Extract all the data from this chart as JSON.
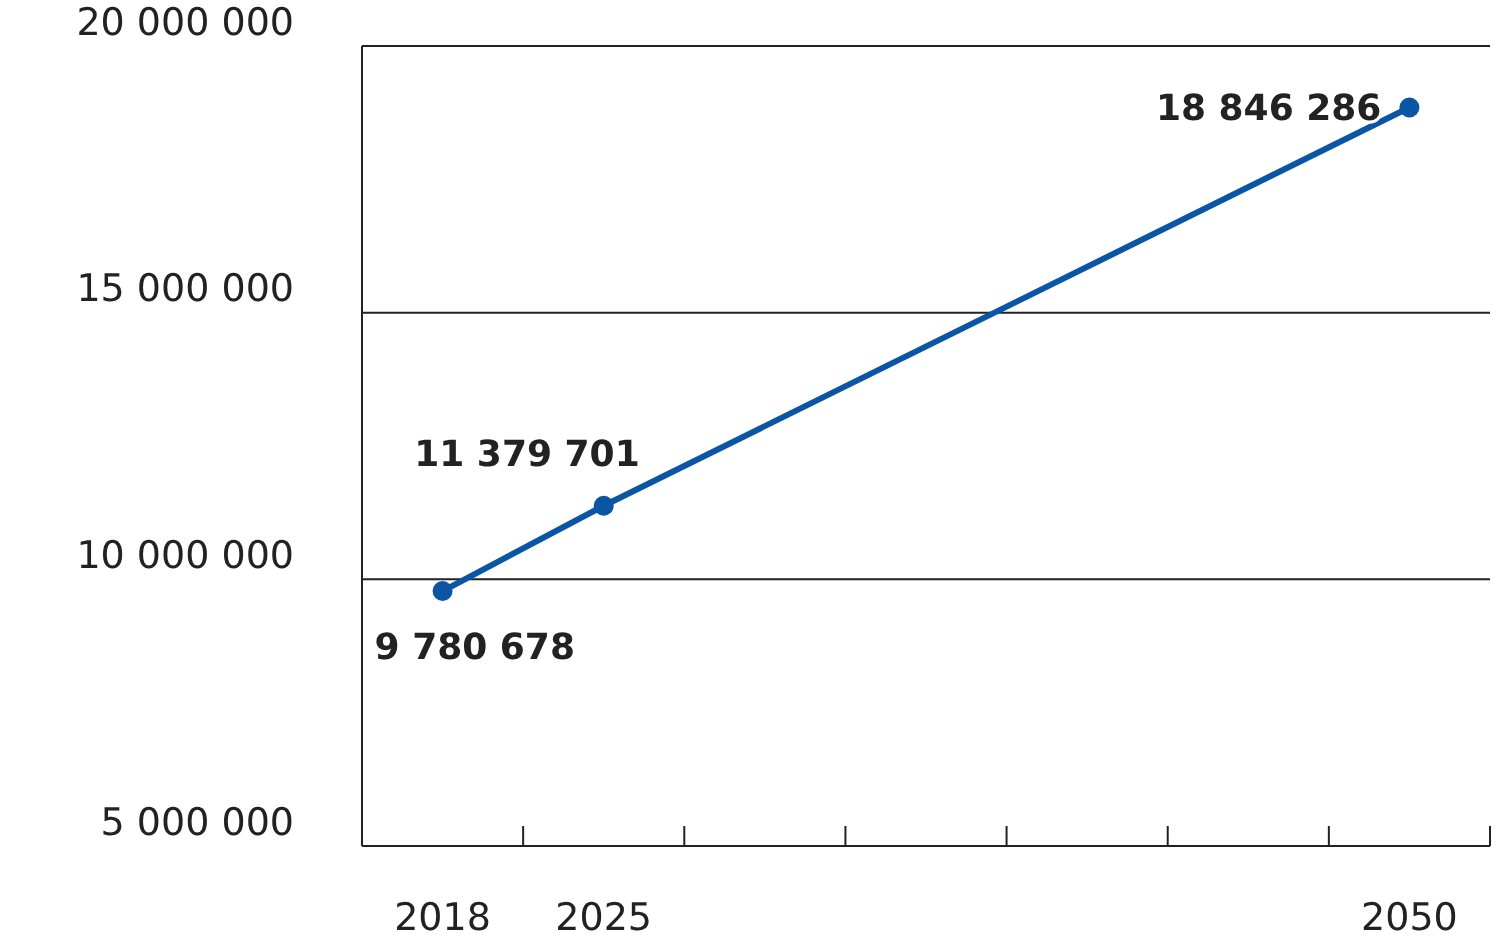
{
  "chart_data": {
    "type": "line",
    "categories": [
      "2018",
      "2025",
      null,
      null,
      null,
      null,
      "2050"
    ],
    "series": [
      {
        "color": "#0a56a5",
        "values": [
          9780678,
          11379701,
          null,
          null,
          null,
          null,
          18846286
        ],
        "value_labels": [
          "9 780 678",
          "11 379 701",
          null,
          null,
          null,
          null,
          "18 846 286"
        ]
      }
    ],
    "ylim": [
      5000000,
      20000000
    ],
    "yticks": [
      {
        "value": 5000000,
        "label": "5 000 000"
      },
      {
        "value": 10000000,
        "label": "10 000 000"
      },
      {
        "value": 15000000,
        "label": "15 000 000"
      },
      {
        "value": 20000000,
        "label": "20 000 000"
      }
    ],
    "grid": "y",
    "marker": "circle",
    "line_style": "solid"
  }
}
